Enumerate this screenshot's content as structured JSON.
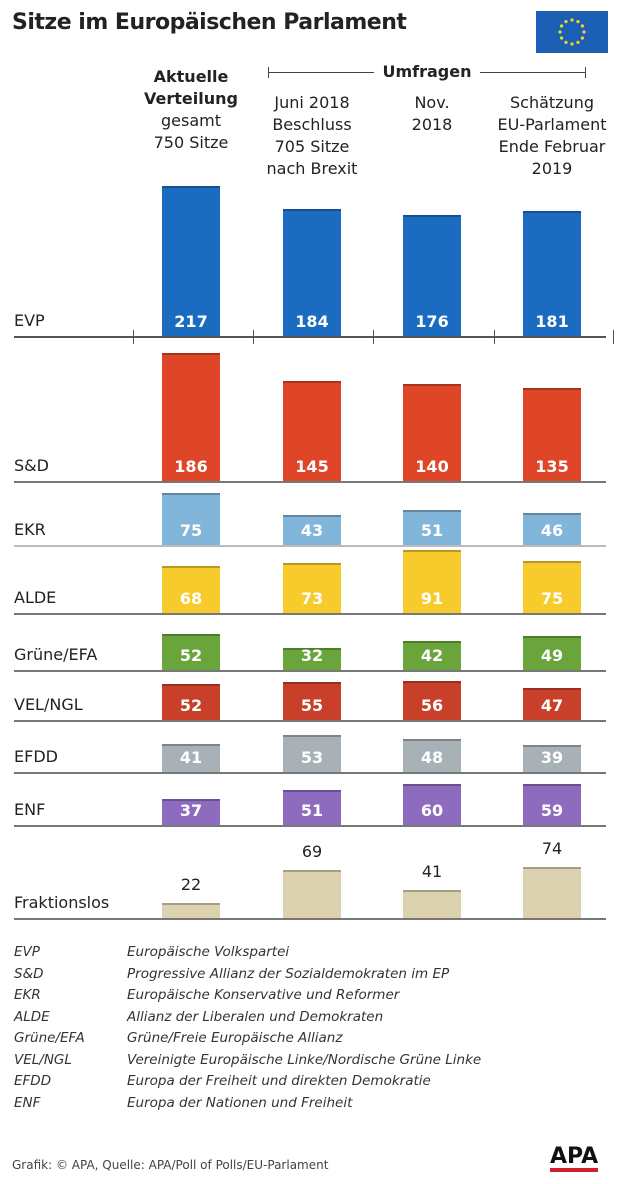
{
  "chart_data": {
    "type": "bar",
    "title": "Sitze im Europäischen Parlament",
    "columns": [
      {
        "lines": [
          "Aktuelle",
          "Verteilung",
          "gesamt",
          "750 Sitze"
        ]
      },
      {
        "lines": [
          "Juni 2018",
          "Beschluss",
          "705 Sitze",
          "nach Brexit"
        ]
      },
      {
        "lines": [
          "Nov.",
          "2018"
        ]
      },
      {
        "lines": [
          "Schätzung",
          "EU-Parlament",
          "Ende Februar",
          "2019"
        ]
      }
    ],
    "group_label": "Umfragen",
    "series": [
      {
        "name": "EVP",
        "color": "#1b6cc0",
        "values": [
          217,
          184,
          176,
          181
        ]
      },
      {
        "name": "S&D",
        "color": "#df4527",
        "values": [
          186,
          145,
          140,
          135
        ]
      },
      {
        "name": "EKR",
        "color": "#82b5da",
        "values": [
          75,
          43,
          51,
          46
        ]
      },
      {
        "name": "ALDE",
        "color": "#f8cb2c",
        "values": [
          68,
          73,
          91,
          75
        ]
      },
      {
        "name": "Grüne/EFA",
        "color": "#6aa53c",
        "values": [
          52,
          32,
          42,
          49
        ]
      },
      {
        "name": "VEL/NGL",
        "color": "#c8402a",
        "values": [
          52,
          55,
          56,
          47
        ]
      },
      {
        "name": "EFDD",
        "color": "#a8b2b6",
        "values": [
          41,
          53,
          48,
          39
        ]
      },
      {
        "name": "ENF",
        "color": "#8d6cc0",
        "values": [
          37,
          51,
          60,
          59
        ]
      },
      {
        "name": "Fraktionslos",
        "color": "#dcd2b0",
        "values": [
          22,
          69,
          41,
          74
        ]
      }
    ]
  },
  "legend": [
    {
      "abbr": "EVP",
      "full": "Europäische Volkspartei"
    },
    {
      "abbr": "S&D",
      "full": "Progressive Allianz der Sozialdemokraten im EP"
    },
    {
      "abbr": "EKR",
      "full": "Europäische Konservative und Reformer"
    },
    {
      "abbr": "ALDE",
      "full": "Allianz der Liberalen und Demokraten"
    },
    {
      "abbr": "Grüne/EFA",
      "full": "Grüne/Freie Europäische Allianz"
    },
    {
      "abbr": "VEL/NGL",
      "full": "Vereinigte Europäische Linke/Nordische Grüne Linke"
    },
    {
      "abbr": "EFDD",
      "full": "Europa der Freiheit und direkten Demokratie"
    },
    {
      "abbr": "ENF",
      "full": "Europa der Nationen und Freiheit"
    }
  ],
  "footer": {
    "source": "Grafik: © APA, Quelle: APA/Poll of Polls/EU-Parlament",
    "logo": "APA"
  }
}
